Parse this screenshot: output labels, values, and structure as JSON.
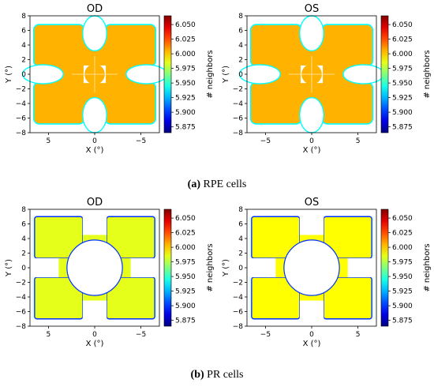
{
  "figure": {
    "rows": [
      {
        "caption_tag": "(a)",
        "caption_text": " RPE cells"
      },
      {
        "caption_tag": "(b)",
        "caption_text": " PR cells"
      }
    ]
  },
  "chart_data": [
    {
      "type": "heatmap",
      "row": 0,
      "col": 0,
      "title": "OD",
      "xlabel": "X (°)",
      "ylabel": "Y (°)",
      "xlim": [
        7,
        -7
      ],
      "ylim": [
        -8,
        8
      ],
      "xticks": [
        5,
        0,
        -5
      ],
      "xtick_labels": [
        "5",
        "0",
        "−5"
      ],
      "yticks": [
        -8,
        -6,
        -4,
        -2,
        0,
        2,
        4,
        6,
        8
      ],
      "colorbar": {
        "label": "# neighbors",
        "colormap": "jet",
        "vmin": 5.865,
        "vmax": 6.065,
        "ticks": [
          5.875,
          5.9,
          5.925,
          5.95,
          5.975,
          6.0,
          6.025,
          6.05
        ]
      },
      "region": "cross-shaped retina map with central hole",
      "typical_value": 6.005,
      "edge_value": 5.94
    },
    {
      "type": "heatmap",
      "row": 0,
      "col": 1,
      "title": "OS",
      "xlabel": "X (°)",
      "ylabel": "Y (°)",
      "xlim": [
        -7,
        7
      ],
      "ylim": [
        -8,
        8
      ],
      "xticks": [
        -5,
        0,
        5
      ],
      "xtick_labels": [
        "−5",
        "0",
        "5"
      ],
      "yticks": [
        -8,
        -6,
        -4,
        -2,
        0,
        2,
        4,
        6,
        8
      ],
      "colorbar": {
        "label": "# neighbors",
        "colormap": "jet",
        "vmin": 5.865,
        "vmax": 6.065,
        "ticks": [
          5.875,
          5.9,
          5.925,
          5.95,
          5.975,
          6.0,
          6.025,
          6.05
        ]
      },
      "region": "cross-shaped retina map with central hole",
      "typical_value": 6.005,
      "edge_value": 5.94
    },
    {
      "type": "heatmap",
      "row": 1,
      "col": 0,
      "title": "OD",
      "xlabel": "X (°)",
      "ylabel": "Y (°)",
      "xlim": [
        7,
        -7
      ],
      "ylim": [
        -8,
        8
      ],
      "xticks": [
        5,
        0,
        -5
      ],
      "xtick_labels": [
        "5",
        "0",
        "−5"
      ],
      "yticks": [
        -8,
        -6,
        -4,
        -2,
        0,
        2,
        4,
        6,
        8
      ],
      "colorbar": {
        "label": "# neighbors",
        "colormap": "jet",
        "vmin": 5.865,
        "vmax": 6.065,
        "ticks": [
          5.875,
          5.9,
          5.925,
          5.95,
          5.975,
          6.0,
          6.025,
          6.05
        ]
      },
      "region": "cross-shaped retina map with circular central hole",
      "typical_value": 5.985,
      "edge_value": 5.9
    },
    {
      "type": "heatmap",
      "row": 1,
      "col": 1,
      "title": "OS",
      "xlabel": "X (°)",
      "ylabel": "Y (°)",
      "xlim": [
        -7,
        7
      ],
      "ylim": [
        -8,
        8
      ],
      "xticks": [
        -5,
        0,
        5
      ],
      "xtick_labels": [
        "−5",
        "0",
        "5"
      ],
      "yticks": [
        -8,
        -6,
        -4,
        -2,
        0,
        2,
        4,
        6,
        8
      ],
      "colorbar": {
        "label": "# neighbors",
        "colormap": "jet",
        "vmin": 5.865,
        "vmax": 6.065,
        "ticks": [
          5.875,
          5.9,
          5.925,
          5.95,
          5.975,
          6.0,
          6.025,
          6.05
        ]
      },
      "region": "cross-shaped retina map with circular central hole",
      "typical_value": 5.99,
      "edge_value": 5.9
    }
  ]
}
